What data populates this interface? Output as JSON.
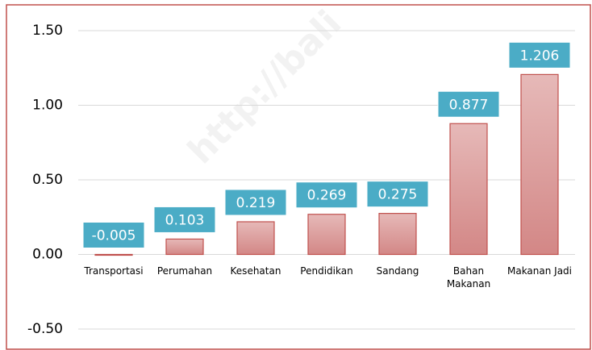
{
  "chart_data": {
    "type": "bar",
    "categories": [
      "Transportasi",
      "Perumahan",
      "Kesehatan",
      "Pendidikan",
      "Sandang",
      "Bahan Makanan",
      "Makanan Jadi"
    ],
    "values": [
      -0.005,
      0.103,
      0.219,
      0.269,
      0.275,
      0.877,
      1.206
    ],
    "color": "#d99594",
    "label_color": "#4bacc6",
    "ylim": [
      -0.5,
      1.5
    ],
    "yticks": [
      {
        "value": -0.5,
        "label": "-0.50"
      },
      {
        "value": 0,
        "label": "0.00"
      },
      {
        "value": 0.5,
        "label": "0.50"
      },
      {
        "value": 1,
        "label": "1.00"
      },
      {
        "value": 1.5,
        "label": "1.50"
      }
    ],
    "grid": true,
    "watermark": "http://bali"
  }
}
